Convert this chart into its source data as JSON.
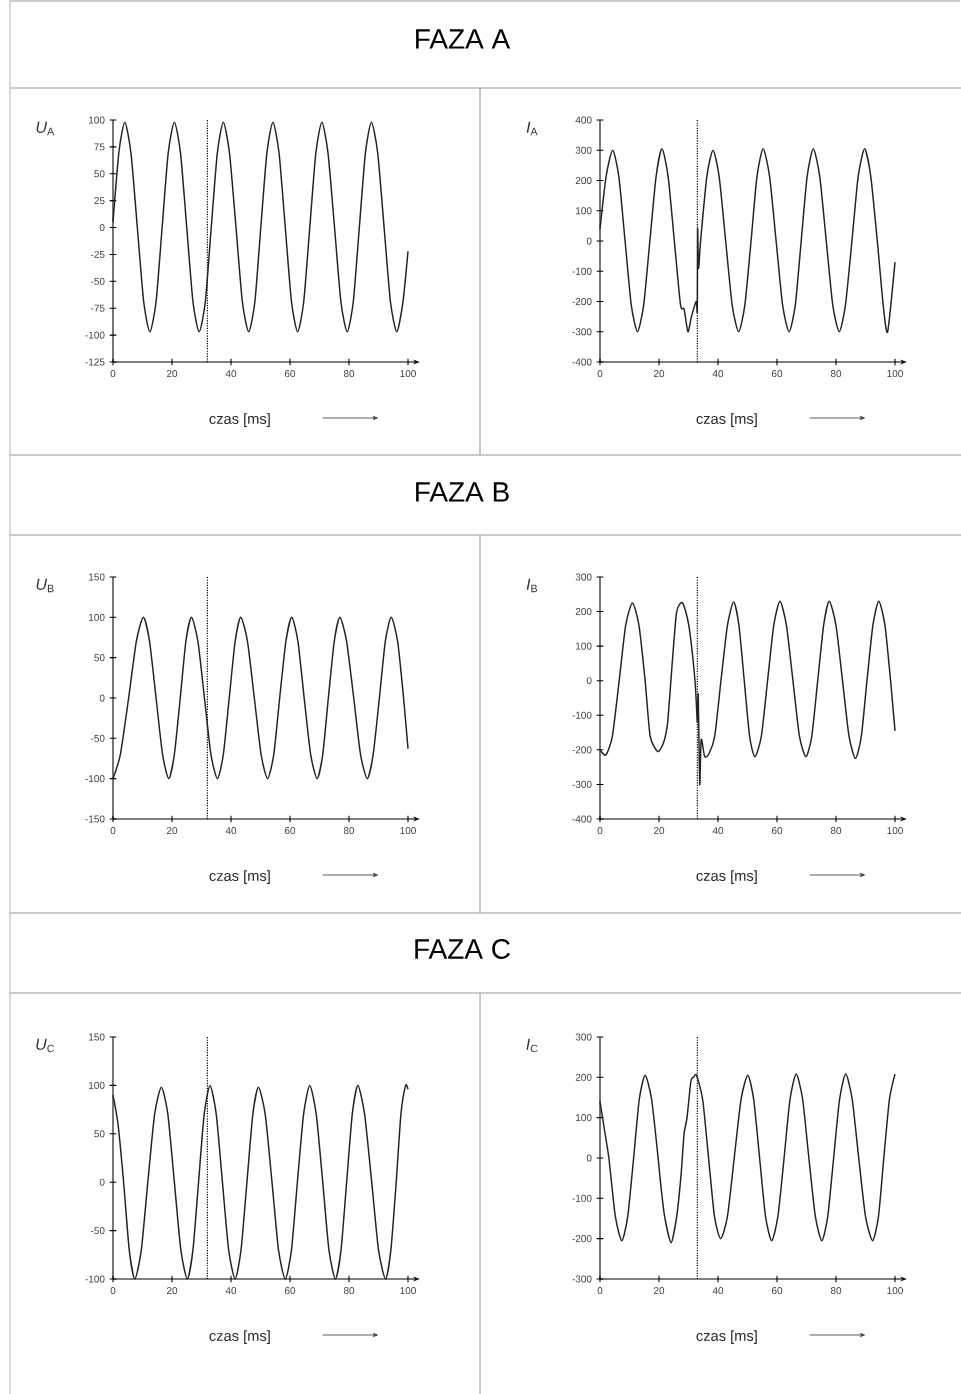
{
  "chart_data": [
    {
      "type": "line",
      "title": "FAZA A",
      "xlabel": "czas [ms]",
      "ylabel": "*U*$_{A}$",
      "xlim": [
        0,
        100
      ],
      "ylim": [
        -125,
        100
      ],
      "xticks": [
        0,
        20,
        40,
        60,
        80,
        100
      ],
      "yticks": [
        -125,
        -100,
        -75,
        -50,
        -25,
        0,
        25,
        50,
        75,
        100
      ],
      "x": [
        0,
        2,
        4,
        6.1,
        8.25,
        10.4,
        12.5,
        14.6,
        16.65,
        18.7,
        20.8,
        22.9,
        25,
        27.1,
        29.2,
        31.3,
        33.3,
        35.35,
        37.4,
        39.5,
        41.7,
        43.85,
        46,
        48.1,
        50.1,
        52.15,
        54.2,
        56.3,
        58.4,
        60.5,
        62.6,
        64.65,
        66.7,
        68.75,
        70.8,
        72.9,
        75.1,
        77.25,
        79.4,
        81.45,
        83.5,
        85.55,
        87.6,
        89.75,
        91.9,
        94.05,
        96.2,
        98.3,
        100
      ],
      "series": [
        {
          "color": "#222222",
          "values": [
            5,
            70,
            98,
            69,
            0,
            -69,
            -97,
            -69,
            0,
            69,
            98,
            69,
            0,
            -69,
            -97,
            -69,
            0,
            69,
            98,
            69,
            0,
            -69,
            -97,
            -69,
            0,
            69,
            98,
            69,
            0,
            -69,
            -97,
            -69,
            0,
            69,
            98,
            69,
            0,
            -69,
            -97,
            -69,
            0,
            69,
            98,
            69,
            0,
            -69,
            -97,
            -69,
            -22
          ]
        }
      ],
      "ref_lines": [
        {
          "axis": "x",
          "value": 32,
          "line_style": "dotted"
        }
      ]
    },
    {
      "type": "line",
      "xlabel": "czas [ms]",
      "ylabel": "*I*$_{A}$",
      "xlim": [
        0,
        100
      ],
      "ylim": [
        -400,
        400
      ],
      "xticks": [
        0,
        20,
        40,
        60,
        80,
        100
      ],
      "yticks": [
        -400,
        -300,
        -200,
        -100,
        0,
        100,
        200,
        300,
        400
      ],
      "x": [
        0,
        2.1,
        4.3,
        6.4,
        8.5,
        10.6,
        12.7,
        14.8,
        16.9,
        19,
        21,
        23.1,
        25.2,
        27.3,
        28.5,
        29.8,
        31,
        32.6,
        33,
        33.1,
        33.4,
        34.1,
        36.2,
        38.3,
        40.4,
        42.6,
        44.8,
        47,
        49.1,
        51.2,
        53.2,
        55.3,
        57.5,
        59.7,
        61.9,
        64.1,
        66.2,
        68.2,
        70.2,
        72.3,
        74.5,
        76.7,
        78.9,
        81.1,
        83.2,
        85.4,
        87.5,
        89.7,
        91.8,
        94,
        96,
        97.5,
        100
      ],
      "series": [
        {
          "color": "#222222",
          "values": [
            40,
            215,
            300,
            212,
            0,
            -212,
            -300,
            -212,
            0,
            212,
            305,
            212,
            0,
            -212,
            -225,
            -300,
            -250,
            -200,
            -230,
            40,
            -90,
            0,
            212,
            300,
            212,
            0,
            -212,
            -300,
            -212,
            0,
            212,
            305,
            212,
            0,
            -212,
            -300,
            -212,
            0,
            212,
            305,
            212,
            0,
            -212,
            -300,
            -212,
            0,
            212,
            305,
            212,
            0,
            -212,
            -300,
            -70
          ]
        }
      ],
      "ref_lines": [
        {
          "axis": "x",
          "value": 33,
          "line_style": "dotted"
        }
      ]
    },
    {
      "type": "line",
      "title": "FAZA B",
      "xlabel": "czas [ms]",
      "ylabel": "*U*$_{B}$",
      "xlim": [
        0,
        100
      ],
      "ylim": [
        -150,
        150
      ],
      "xticks": [
        0,
        20,
        40,
        60,
        80,
        100
      ],
      "yticks": [
        -150,
        -100,
        -50,
        0,
        50,
        100,
        150
      ],
      "x": [
        0,
        2.5,
        5.3,
        7.9,
        10.3,
        12.4,
        14.6,
        16.8,
        18.9,
        20.8,
        22.8,
        24.7,
        26.6,
        28.8,
        31,
        33.2,
        35.4,
        37.4,
        39.4,
        41.4,
        43.3,
        45.6,
        47.9,
        50.2,
        52.4,
        54.5,
        56.5,
        58.6,
        60.6,
        62.7,
        64.8,
        67,
        69.2,
        71.1,
        73,
        75,
        76.9,
        79.2,
        81.6,
        83.9,
        86.2,
        88.2,
        90.3,
        92.3,
        94.3,
        96.5,
        98.5,
        100
      ],
      "series": [
        {
          "color": "#222222",
          "values": [
            -100,
            -70,
            0,
            70,
            100,
            70,
            0,
            -70,
            -100,
            -70,
            0,
            70,
            100,
            70,
            0,
            -70,
            -100,
            -70,
            0,
            70,
            100,
            70,
            0,
            -70,
            -100,
            -70,
            0,
            70,
            100,
            70,
            0,
            -70,
            -100,
            -70,
            0,
            70,
            100,
            70,
            0,
            -70,
            -100,
            -70,
            0,
            70,
            100,
            70,
            0,
            -63
          ]
        }
      ],
      "ref_lines": [
        {
          "axis": "x",
          "value": 32,
          "line_style": "dotted"
        }
      ]
    },
    {
      "type": "line",
      "xlabel": "czas [ms]",
      "ylabel": "*I*$_{B}$",
      "xlim": [
        0,
        100
      ],
      "ylim": [
        -400,
        300
      ],
      "xticks": [
        0,
        20,
        40,
        60,
        80,
        100
      ],
      "yticks": [
        -400,
        -300,
        -200,
        -100,
        0,
        100,
        200,
        300
      ],
      "x": [
        0,
        2,
        4.2,
        6.5,
        8.7,
        11,
        13.2,
        15.3,
        17,
        19.6,
        21.5,
        22.8,
        23.6,
        24.6,
        26,
        28,
        30.1,
        32.2,
        33,
        33.3,
        33.8,
        34.3,
        35.5,
        37,
        38.9,
        41,
        43.2,
        45.3,
        47.1,
        48.9,
        50.7,
        52.5,
        54.7,
        56.8,
        58.9,
        61,
        63.2,
        65.4,
        67.6,
        69.8,
        71.8,
        73.8,
        75.8,
        77.7,
        80,
        82.2,
        84.4,
        86.6,
        88.6,
        90.5,
        92.5,
        94.5,
        96.6,
        98.5,
        100
      ],
      "series": [
        {
          "color": "#222222",
          "values": [
            -200,
            -215,
            -160,
            0,
            160,
            225,
            160,
            0,
            -160,
            -205,
            -180,
            -130,
            -50,
            65,
            200,
            225,
            160,
            0,
            -120,
            -40,
            -300,
            -170,
            -220,
            -210,
            -160,
            0,
            160,
            228,
            160,
            0,
            -160,
            -220,
            -160,
            0,
            160,
            230,
            160,
            0,
            -160,
            -220,
            -160,
            0,
            160,
            230,
            160,
            0,
            -160,
            -225,
            -160,
            0,
            160,
            230,
            160,
            0,
            -145
          ]
        }
      ],
      "ref_lines": [
        {
          "axis": "x",
          "value": 33,
          "line_style": "dotted"
        }
      ]
    },
    {
      "type": "line",
      "title": "FAZA C",
      "xlabel": "czas [ms]",
      "ylabel": "*U*$_{C}$",
      "xlim": [
        0,
        100
      ],
      "ylim": [
        -100,
        150
      ],
      "xticks": [
        0,
        20,
        40,
        60,
        80,
        100
      ],
      "yticks": [
        -100,
        -50,
        0,
        50,
        100,
        150
      ],
      "x": [
        0,
        1.7,
        3.6,
        5.5,
        7.4,
        9.6,
        11.8,
        14.1,
        16.4,
        18.6,
        20.8,
        23,
        25.2,
        27.1,
        29,
        30.9,
        32.9,
        35,
        37.1,
        39.2,
        41.4,
        43.4,
        45.4,
        47.4,
        49.3,
        51.6,
        53.9,
        56.1,
        58.4,
        60.5,
        62.5,
        64.6,
        66.7,
        68.9,
        71.1,
        73.2,
        75.4,
        77.3,
        79.2,
        81.1,
        83,
        85.3,
        87.7,
        90,
        92.4,
        94.2,
        96,
        97.6,
        99.2,
        100
      ],
      "series": [
        {
          "color": "#222222",
          "values": [
            90,
            60,
            0,
            -70,
            -100,
            -70,
            0,
            70,
            98,
            70,
            0,
            -70,
            -100,
            -70,
            0,
            70,
            100,
            70,
            0,
            -70,
            -100,
            -70,
            0,
            70,
            98,
            70,
            0,
            -70,
            -100,
            -70,
            0,
            70,
            100,
            70,
            0,
            -70,
            -100,
            -70,
            0,
            70,
            100,
            70,
            0,
            -70,
            -100,
            -70,
            0,
            70,
            100,
            96
          ]
        }
      ],
      "ref_lines": [
        {
          "axis": "x",
          "value": 32,
          "line_style": "dotted"
        }
      ]
    },
    {
      "type": "line",
      "xlabel": "czas [ms]",
      "ylabel": "*I*$_{C}$",
      "xlim": [
        0,
        100
      ],
      "ylim": [
        -300,
        300
      ],
      "xticks": [
        0,
        20,
        40,
        60,
        80,
        100
      ],
      "yticks": [
        -300,
        -200,
        -100,
        0,
        100,
        200,
        300
      ],
      "x": [
        0,
        1.4,
        3,
        5.2,
        7.4,
        9.4,
        11.4,
        13.3,
        15.3,
        17.5,
        19.7,
        20.5,
        21.9,
        24.1,
        26,
        27.5,
        28.5,
        29.5,
        30.8,
        31.7,
        32.7,
        34.8,
        36.8,
        38.8,
        40.9,
        43.2,
        45.5,
        47.8,
        50.1,
        52.1,
        54.1,
        56.1,
        58.2,
        60.3,
        62.4,
        64.4,
        66.5,
        68.7,
        70.8,
        73,
        75.2,
        77.2,
        79.2,
        81.2,
        83.3,
        85.5,
        87.7,
        90,
        92.4,
        94.4,
        96.2,
        98.1,
        100
      ],
      "series": [
        {
          "color": "#222222",
          "values": [
            140,
            75,
            0,
            -145,
            -205,
            -145,
            0,
            145,
            205,
            145,
            0,
            -60,
            -145,
            -210,
            -145,
            -40,
            60,
            100,
            190,
            200,
            205,
            145,
            0,
            -145,
            -200,
            -145,
            0,
            145,
            205,
            145,
            0,
            -145,
            -205,
            -145,
            0,
            145,
            208,
            145,
            0,
            -145,
            -205,
            -145,
            0,
            145,
            208,
            145,
            0,
            -145,
            -205,
            -145,
            0,
            145,
            208
          ]
        }
      ],
      "ref_lines": [
        {
          "axis": "x",
          "value": 33,
          "line_style": "dotted"
        }
      ]
    }
  ]
}
